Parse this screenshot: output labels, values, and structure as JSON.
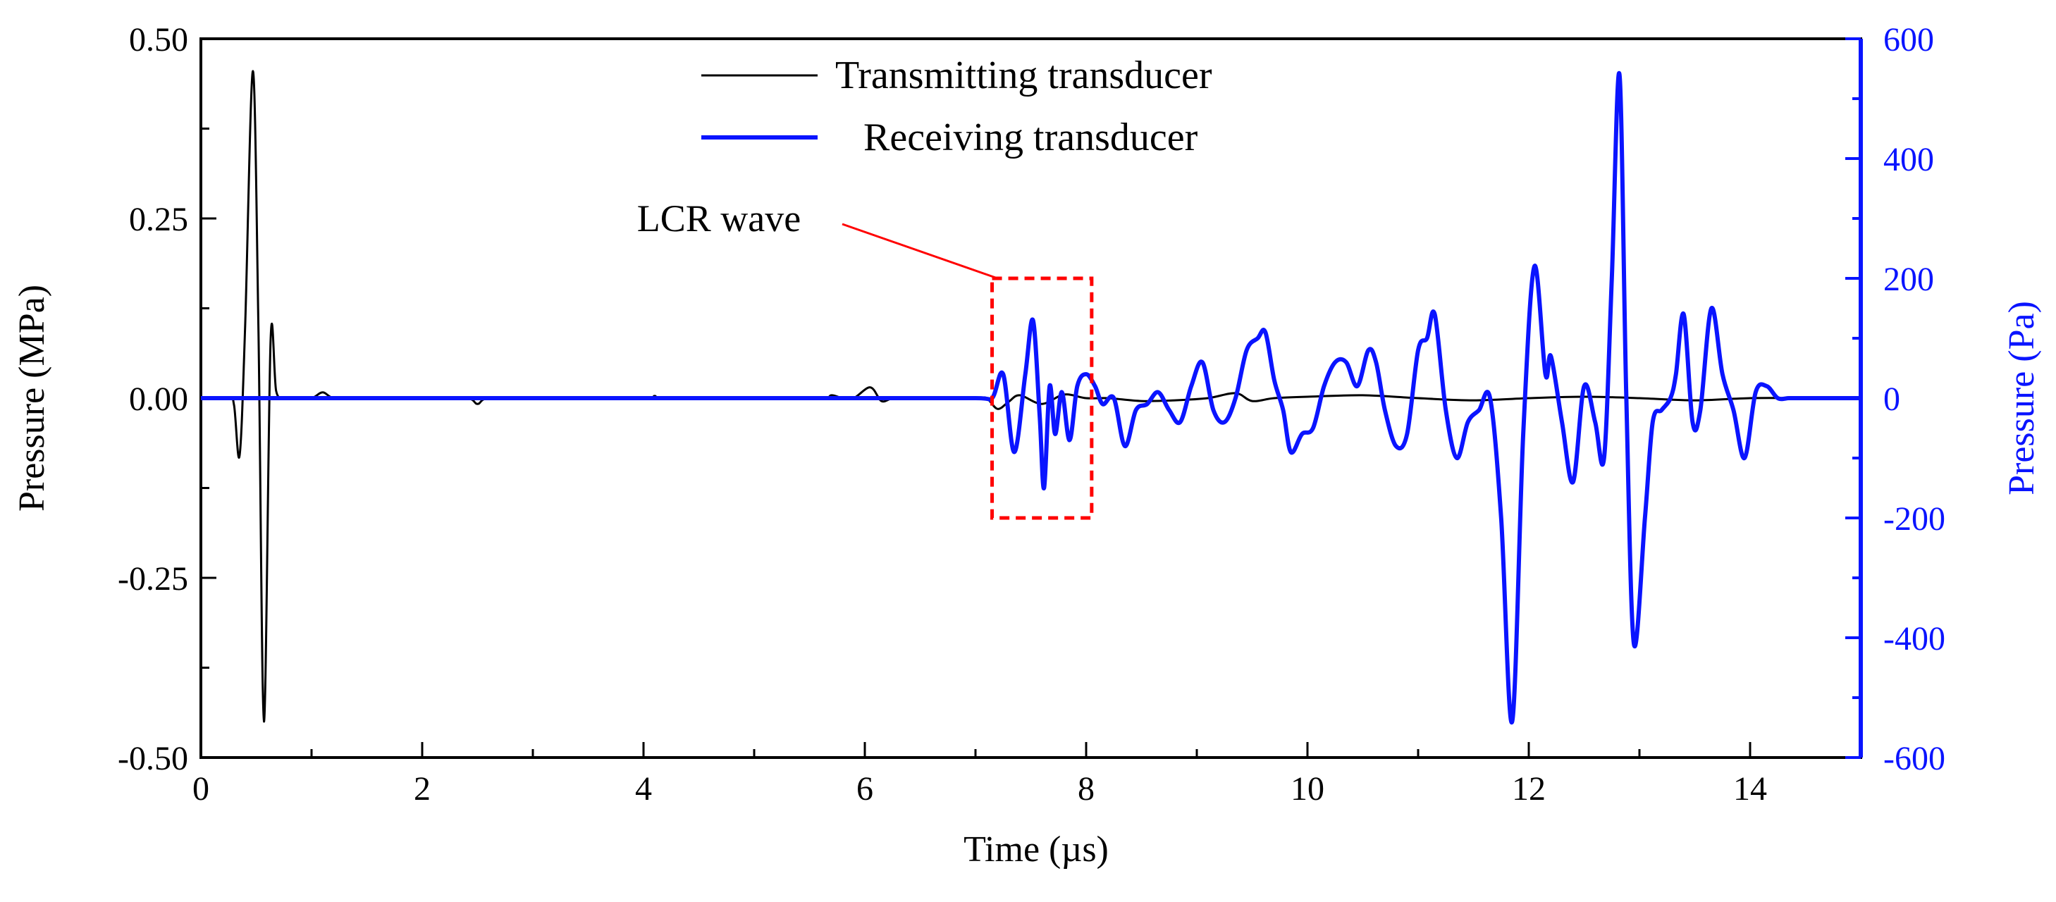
{
  "chart_data": {
    "type": "line",
    "title": "",
    "xlabel": "Time (µs)",
    "ylabel_left": "Pressure (MPa)",
    "ylabel_right": "Pressure (Pa)",
    "xlim": [
      0,
      15
    ],
    "ylim_left": [
      -0.5,
      0.5
    ],
    "ylim_right": [
      -600,
      600
    ],
    "x_ticks": [
      "0",
      "2",
      "4",
      "6",
      "8",
      "10",
      "12",
      "14"
    ],
    "x_tick_values": [
      0,
      2,
      4,
      6,
      8,
      10,
      12,
      14
    ],
    "y_ticks_left": [
      "0.50",
      "0.25",
      "0.00",
      "-0.25",
      "-0.50"
    ],
    "y_tick_values_left": [
      0.5,
      0.25,
      0,
      -0.25,
      -0.5
    ],
    "y_ticks_right": [
      "600",
      "400",
      "200",
      "0",
      "-200",
      "-400",
      "-600"
    ],
    "y_tick_values_right": [
      600,
      400,
      200,
      0,
      -200,
      -400,
      -600
    ],
    "grid": false,
    "legend_position": "top-center",
    "colors": {
      "transmitting": "#000000",
      "receiving": "#0a14ff",
      "annotation": "#ff0000",
      "right_axis": "#0a14ff"
    },
    "series": [
      {
        "name": "Transmitting transducer",
        "axis": "left",
        "x": [
          0,
          0.25,
          0.3,
          0.35,
          0.4,
          0.47,
          0.52,
          0.57,
          0.63,
          0.68,
          0.75,
          0.85,
          1.0,
          1.1,
          1.2,
          1.4,
          1.6,
          2.0,
          2.4,
          2.5,
          2.6,
          3.0,
          4.0,
          4.1,
          4.2,
          5.0,
          5.6,
          5.7,
          5.8,
          5.9,
          6.05,
          6.15,
          6.25,
          6.35,
          6.5,
          7.0,
          7.1,
          7.2,
          7.3,
          7.4,
          7.6,
          7.8,
          8.0,
          8.2,
          8.5,
          8.8,
          9.1,
          9.35,
          9.5,
          9.7,
          10.0,
          10.5,
          11.0,
          11.5,
          12.0,
          12.5,
          13.0,
          13.5,
          14.0,
          14.5,
          15.0
        ],
        "values": [
          0,
          0,
          -0.01,
          -0.08,
          0.1,
          0.455,
          0.1,
          -0.45,
          0.08,
          0.01,
          0,
          0,
          0,
          0.008,
          0,
          0,
          0,
          0,
          0,
          -0.008,
          0,
          0,
          0,
          0.003,
          0,
          0,
          0,
          0.004,
          0,
          0,
          0.015,
          -0.004,
          0,
          0,
          0,
          0,
          0,
          -0.015,
          -0.005,
          0.004,
          -0.008,
          0.005,
          0,
          0,
          -0.004,
          -0.003,
          0,
          0.007,
          -0.004,
          0,
          0.002,
          0.004,
          0,
          -0.003,
          0,
          0.002,
          0,
          -0.003,
          0,
          0,
          0
        ]
      },
      {
        "name": "Receiving transducer",
        "axis": "right",
        "x": [
          0,
          1.0,
          2.0,
          3.0,
          4.0,
          5.0,
          6.0,
          7.0,
          7.15,
          7.25,
          7.35,
          7.45,
          7.52,
          7.58,
          7.62,
          7.67,
          7.72,
          7.78,
          7.85,
          7.92,
          8.0,
          8.08,
          8.15,
          8.25,
          8.35,
          8.45,
          8.55,
          8.65,
          8.75,
          8.85,
          8.95,
          9.05,
          9.15,
          9.25,
          9.35,
          9.45,
          9.55,
          9.62,
          9.7,
          9.78,
          9.85,
          9.95,
          10.05,
          10.15,
          10.25,
          10.35,
          10.45,
          10.55,
          10.62,
          10.7,
          10.8,
          10.9,
          11.0,
          11.08,
          11.15,
          11.25,
          11.35,
          11.45,
          11.55,
          11.65,
          11.75,
          11.85,
          11.95,
          12.05,
          12.15,
          12.2,
          12.3,
          12.4,
          12.5,
          12.6,
          12.68,
          12.75,
          12.82,
          12.88,
          12.95,
          13.05,
          13.12,
          13.2,
          13.28,
          13.33,
          13.4,
          13.48,
          13.55,
          13.65,
          13.75,
          13.85,
          13.95,
          14.05,
          14.15,
          14.25,
          14.35,
          14.45,
          14.52,
          14.62,
          14.7,
          14.8,
          14.9,
          15.0
        ],
        "values": [
          0,
          0,
          0,
          0,
          0,
          0,
          0,
          0,
          0,
          40,
          -90,
          40,
          130,
          -30,
          -150,
          20,
          -60,
          10,
          -70,
          20,
          40,
          20,
          -10,
          0,
          -80,
          -20,
          -10,
          10,
          -20,
          -40,
          20,
          60,
          -20,
          -40,
          0,
          80,
          100,
          110,
          30,
          -20,
          -90,
          -60,
          -50,
          20,
          60,
          60,
          20,
          80,
          60,
          -20,
          -80,
          -60,
          80,
          100,
          140,
          -20,
          -100,
          -40,
          -20,
          0,
          -200,
          -540,
          -60,
          220,
          40,
          70,
          -40,
          -140,
          20,
          -40,
          -100,
          200,
          540,
          10,
          -410,
          -200,
          -40,
          -20,
          0,
          40,
          140,
          -40,
          -20,
          150,
          40,
          -20,
          -100,
          10,
          20,
          0,
          0,
          0,
          0,
          0,
          0,
          0,
          0,
          0
        ]
      }
    ],
    "legend": [
      "Transmitting transducer",
      "Receiving transducer"
    ],
    "annotations": [
      {
        "text": "LCR wave",
        "box_x": [
          7.15,
          8.05
        ],
        "box_y_right": [
          -200,
          200
        ],
        "arrow_target_x": 7.2,
        "arrow_target_y_right": 200
      }
    ]
  }
}
